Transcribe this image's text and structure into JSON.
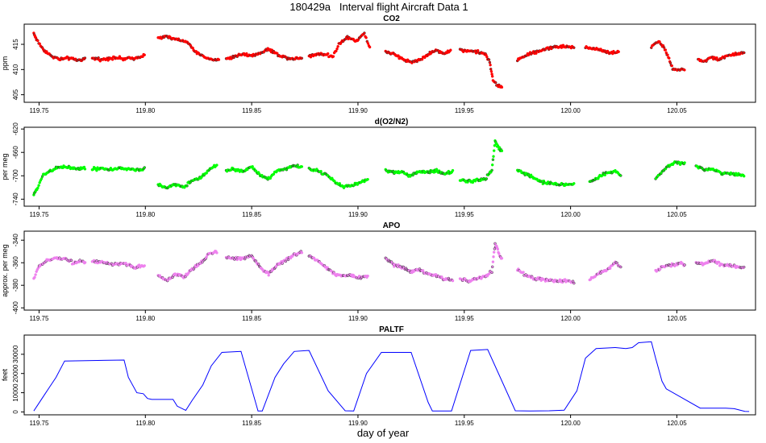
{
  "title": "180429a   Interval flight Aircraft Data 1",
  "xlabel": "day of year",
  "chart_data": [
    {
      "type": "scatter",
      "title": "CO2",
      "ylabel": "ppm",
      "color": "#ff0000",
      "xlim": [
        119.743,
        120.087
      ],
      "ylim": [
        403.5,
        419
      ],
      "xticks": [
        "119.75",
        "119.80",
        "119.85",
        "119.90",
        "119.95",
        "120.00",
        "120.05"
      ],
      "yticks": [
        "405",
        "410",
        "415"
      ],
      "segments": [
        {
          "x": [
            119.7475,
            119.749,
            119.752,
            119.756,
            119.76,
            119.764,
            119.768,
            119.772
          ],
          "y": [
            417.2,
            415.8,
            414.0,
            412.6,
            412.0,
            412.3,
            411.8,
            412.1
          ]
        },
        {
          "x": [
            119.775,
            119.78,
            119.785,
            119.79,
            119.795,
            119.8
          ],
          "y": [
            412.2,
            412.0,
            412.4,
            412.1,
            412.3,
            412.9
          ]
        },
        {
          "x": [
            119.806,
            119.81,
            119.814,
            119.818,
            119.821,
            119.823,
            119.826,
            119.829,
            119.832,
            119.835
          ],
          "y": [
            416.3,
            416.5,
            416.0,
            415.7,
            415.0,
            413.5,
            413.0,
            412.2,
            412.0,
            411.9
          ]
        },
        {
          "x": [
            119.838,
            119.842,
            119.846,
            119.85,
            119.854,
            119.858,
            119.862,
            119.866,
            119.87,
            119.874
          ],
          "y": [
            412.1,
            412.6,
            413.1,
            412.8,
            413.2,
            414.1,
            413.0,
            412.4,
            412.1,
            412.4
          ]
        },
        {
          "x": [
            119.877,
            119.881,
            119.885,
            119.888,
            119.891,
            119.895,
            119.899,
            119.903,
            119.906
          ],
          "y": [
            412.7,
            413.1,
            413.0,
            412.5,
            415.0,
            416.5,
            415.6,
            417.2,
            413.9
          ]
        },
        {
          "x": [
            119.913,
            119.917,
            119.921,
            119.925,
            119.929,
            119.933,
            119.937,
            119.941,
            119.944
          ],
          "y": [
            413.5,
            413.0,
            412.1,
            411.5,
            411.9,
            413.0,
            413.8,
            413.2,
            414.0
          ]
        },
        {
          "x": [
            119.948,
            119.952,
            119.956,
            119.96,
            119.962,
            119.9635,
            119.966,
            119.968
          ],
          "y": [
            413.9,
            413.7,
            413.5,
            413.0,
            411.5,
            407.8,
            406.7,
            406.5
          ]
        },
        {
          "x": [
            119.975,
            119.979,
            119.983,
            119.987,
            119.991,
            119.995,
            119.999,
            120.002
          ],
          "y": [
            412.0,
            412.8,
            413.4,
            413.9,
            414.4,
            414.6,
            414.5,
            414.4
          ]
        },
        {
          "x": [
            120.007,
            120.011,
            120.015,
            120.019,
            120.023
          ],
          "y": [
            414.3,
            414.2,
            413.8,
            413.3,
            413.5
          ]
        },
        {
          "x": [
            120.038,
            120.041,
            120.044,
            120.046,
            120.048,
            120.051,
            120.054
          ],
          "y": [
            414.5,
            415.6,
            414.5,
            412.3,
            410.3,
            409.9,
            410.1
          ]
        },
        {
          "x": [
            120.06,
            120.063,
            120.066,
            120.07,
            120.074,
            120.078,
            120.082
          ],
          "y": [
            412.0,
            411.6,
            412.4,
            412.0,
            412.8,
            413.0,
            413.4
          ]
        }
      ]
    },
    {
      "type": "scatter",
      "title": "d(O2/N2)",
      "ylabel": "per meg",
      "color": "#00ff00",
      "xlim": [
        119.743,
        120.087
      ],
      "ylim": [
        -752,
        -617
      ],
      "xticks": [
        "119.75",
        "119.80",
        "119.85",
        "119.90",
        "119.95",
        "120.00",
        "120.05"
      ],
      "yticks": [
        "-740",
        "-700",
        "-660",
        "-620"
      ],
      "segments": [
        {
          "x": [
            119.7475,
            119.749,
            119.752,
            119.756,
            119.76,
            119.764,
            119.768,
            119.772
          ],
          "y": [
            -733,
            -722,
            -698,
            -690,
            -684,
            -686,
            -688,
            -687
          ]
        },
        {
          "x": [
            119.775,
            119.78,
            119.785,
            119.79,
            119.795,
            119.8
          ],
          "y": [
            -688,
            -688,
            -689,
            -687,
            -690,
            -688
          ]
        },
        {
          "x": [
            119.806,
            119.81,
            119.814,
            119.818,
            119.822,
            119.826,
            119.83,
            119.834
          ],
          "y": [
            -716,
            -721,
            -714,
            -720,
            -708,
            -703,
            -690,
            -681
          ]
        },
        {
          "x": [
            119.838,
            119.842,
            119.846,
            119.85,
            119.854,
            119.858,
            119.862,
            119.866,
            119.87,
            119.874
          ],
          "y": [
            -690,
            -689,
            -693,
            -684,
            -699,
            -705,
            -691,
            -688,
            -683,
            -685
          ]
        },
        {
          "x": [
            119.877,
            119.881,
            119.885,
            119.889,
            119.893,
            119.897,
            119.901,
            119.905
          ],
          "y": [
            -688,
            -692,
            -698,
            -710,
            -719,
            -716,
            -712,
            -705
          ]
        },
        {
          "x": [
            119.913,
            119.917,
            119.921,
            119.925,
            119.929,
            119.933,
            119.937,
            119.941,
            119.945
          ],
          "y": [
            -691,
            -695,
            -694,
            -700,
            -692,
            -694,
            -691,
            -697,
            -692
          ]
        },
        {
          "x": [
            119.948,
            119.952,
            119.956,
            119.96,
            119.963,
            119.9645,
            119.966,
            119.968
          ],
          "y": [
            -708,
            -710,
            -708,
            -705,
            -690,
            -640,
            -652,
            -658
          ]
        },
        {
          "x": [
            119.975,
            119.979,
            119.983,
            119.987,
            119.991,
            119.995,
            119.999,
            120.002
          ],
          "y": [
            -692,
            -697,
            -704,
            -711,
            -713,
            -715,
            -715,
            -714
          ]
        },
        {
          "x": [
            120.009,
            120.013,
            120.017,
            120.021,
            120.024
          ],
          "y": [
            -710,
            -703,
            -694,
            -692,
            -702
          ]
        },
        {
          "x": [
            120.04,
            120.043,
            120.046,
            120.049,
            120.052,
            120.054
          ],
          "y": [
            -704,
            -694,
            -684,
            -676,
            -678,
            -681
          ]
        },
        {
          "x": [
            120.059,
            120.063,
            120.067,
            120.071,
            120.075,
            120.079,
            120.082
          ],
          "y": [
            -683,
            -690,
            -688,
            -695,
            -697,
            -699,
            -700
          ]
        }
      ]
    },
    {
      "type": "scatter",
      "title": "APO",
      "ylabel": "approx. per meg",
      "color": "#ee82ee",
      "xlim": [
        119.743,
        120.087
      ],
      "ylim": [
        -402,
        -332
      ],
      "xticks": [
        "119.75",
        "119.80",
        "119.85",
        "119.90",
        "119.95",
        "120.00",
        "120.05"
      ],
      "yticks": [
        "-400",
        "-380",
        "-360",
        "-340"
      ],
      "segments": [
        {
          "x": [
            119.7475,
            119.75,
            119.754,
            119.758,
            119.762,
            119.766,
            119.77,
            119.772
          ],
          "y": [
            -374,
            -363,
            -358,
            -356,
            -356,
            -360,
            -358,
            -361
          ]
        },
        {
          "x": [
            119.775,
            119.78,
            119.785,
            119.79,
            119.795,
            119.8
          ],
          "y": [
            -359,
            -360,
            -362,
            -361,
            -364,
            -362
          ]
        },
        {
          "x": [
            119.806,
            119.81,
            119.814,
            119.818,
            119.822,
            119.826,
            119.83,
            119.834
          ],
          "y": [
            -371,
            -376,
            -370,
            -373,
            -366,
            -360,
            -352,
            -350
          ]
        },
        {
          "x": [
            119.838,
            119.842,
            119.846,
            119.85,
            119.854,
            119.858,
            119.862,
            119.866,
            119.87,
            119.874
          ],
          "y": [
            -356,
            -356,
            -356,
            -354,
            -364,
            -370,
            -362,
            -358,
            -353,
            -350
          ]
        },
        {
          "x": [
            119.877,
            119.881,
            119.885,
            119.889,
            119.893,
            119.897,
            119.901,
            119.905
          ],
          "y": [
            -354,
            -358,
            -364,
            -370,
            -371,
            -372,
            -373,
            -372
          ]
        },
        {
          "x": [
            119.913,
            119.917,
            119.921,
            119.925,
            119.929,
            119.933,
            119.937,
            119.941,
            119.945
          ],
          "y": [
            -356,
            -362,
            -364,
            -368,
            -366,
            -370,
            -372,
            -374,
            -376
          ]
        },
        {
          "x": [
            119.948,
            119.952,
            119.956,
            119.96,
            119.963,
            119.9645,
            119.966,
            119.968
          ],
          "y": [
            -374,
            -376,
            -374,
            -372,
            -368,
            -343,
            -350,
            -358
          ]
        },
        {
          "x": [
            119.975,
            119.979,
            119.983,
            119.987,
            119.991,
            119.995,
            119.999,
            120.002
          ],
          "y": [
            -366,
            -371,
            -374,
            -375,
            -376,
            -376,
            -376,
            -378
          ]
        },
        {
          "x": [
            120.009,
            120.013,
            120.017,
            120.021,
            120.024
          ],
          "y": [
            -375,
            -370,
            -366,
            -360,
            -364
          ]
        },
        {
          "x": [
            120.04,
            120.043,
            120.046,
            120.049,
            120.052,
            120.054
          ],
          "y": [
            -368,
            -364,
            -362,
            -362,
            -360,
            -362
          ]
        },
        {
          "x": [
            120.059,
            120.063,
            120.067,
            120.071,
            120.075,
            120.079,
            120.082
          ],
          "y": [
            -360,
            -361,
            -358,
            -362,
            -362,
            -364,
            -364
          ]
        }
      ]
    },
    {
      "type": "line",
      "title": "PALTF",
      "ylabel": "feet",
      "color": "#0000ff",
      "xlim": [
        119.743,
        120.087
      ],
      "ylim": [
        -1500,
        40000
      ],
      "xticks": [
        "119.75",
        "119.80",
        "119.85",
        "119.90",
        "119.95",
        "120.00",
        "120.05"
      ],
      "yticks": [
        "0",
        "10000",
        "20000",
        "30000"
      ],
      "x": [
        119.7475,
        119.749,
        119.752,
        119.755,
        119.758,
        119.762,
        119.79,
        119.792,
        119.796,
        119.799,
        119.801,
        119.803,
        119.806,
        119.813,
        119.815,
        119.819,
        119.822,
        119.827,
        119.831,
        119.836,
        119.845,
        119.853,
        119.855,
        119.861,
        119.865,
        119.87,
        119.877,
        119.886,
        119.894,
        119.898,
        119.904,
        119.911,
        119.925,
        119.933,
        119.935,
        119.944,
        119.953,
        119.961,
        119.974,
        119.981,
        119.99,
        119.997,
        120.003,
        120.007,
        120.012,
        120.021,
        120.026,
        120.029,
        120.032,
        120.038,
        120.04,
        120.043,
        120.045,
        120.061,
        120.067,
        120.073,
        120.077,
        120.082,
        120.084
      ],
      "y": [
        500,
        3000,
        8000,
        13000,
        18000,
        26500,
        27000,
        18000,
        10000,
        9500,
        7000,
        6500,
        6500,
        6500,
        3000,
        800,
        6000,
        14000,
        24000,
        31000,
        31500,
        500,
        500,
        18000,
        25000,
        31500,
        32000,
        11000,
        600,
        500,
        20000,
        31000,
        31000,
        5000,
        500,
        500,
        32000,
        32500,
        600,
        500,
        600,
        900,
        11000,
        28000,
        33000,
        33500,
        33000,
        33500,
        36000,
        36500,
        28000,
        16000,
        12000,
        2000,
        2000,
        2000,
        1700,
        300,
        200
      ]
    }
  ]
}
